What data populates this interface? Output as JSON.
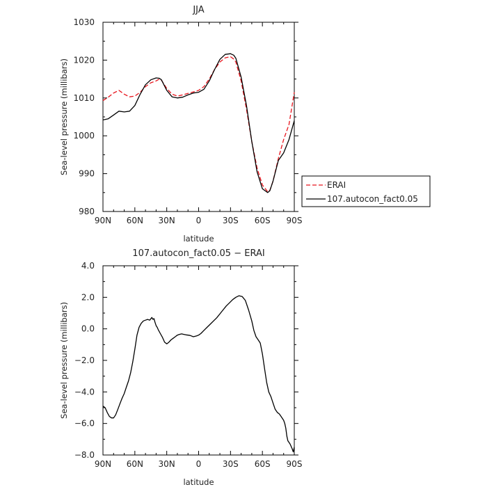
{
  "chart_data": [
    {
      "type": "line",
      "title": "JJA",
      "xlabel": "latitude",
      "ylabel": "Sea-level pressure (millibars)",
      "xlim": [
        90,
        -90
      ],
      "ylim": [
        980,
        1030
      ],
      "x_ticks": [
        90,
        60,
        30,
        0,
        -30,
        -60,
        -90
      ],
      "x_tick_labels": [
        "90N",
        "60N",
        "30N",
        "0",
        "30S",
        "60S",
        "90S"
      ],
      "y_ticks": [
        980,
        990,
        1000,
        1010,
        1020,
        1030
      ],
      "y_tick_labels": [
        "980",
        "990",
        "1000",
        "1010",
        "1020",
        "1030"
      ],
      "legend_position": "right",
      "series": [
        {
          "name": "ERAI",
          "color": "#e8141c",
          "dash": "dashed",
          "x": [
            90,
            85,
            80,
            75,
            70,
            65,
            60,
            55,
            50,
            45,
            40,
            37,
            35,
            30,
            25,
            20,
            15,
            10,
            5,
            0,
            -5,
            -10,
            -15,
            -20,
            -25,
            -30,
            -33,
            -35,
            -40,
            -45,
            -50,
            -55,
            -60,
            -65,
            -67,
            -70,
            -75,
            -80,
            -85,
            -90
          ],
          "y": [
            1009.3,
            1010.2,
            1011.3,
            1012.0,
            1011.0,
            1010.3,
            1010.5,
            1011.5,
            1013.0,
            1014.0,
            1014.5,
            1015.0,
            1014.7,
            1012.5,
            1011.0,
            1010.5,
            1010.8,
            1011.2,
            1011.6,
            1012.0,
            1013.0,
            1015.0,
            1017.5,
            1019.5,
            1020.6,
            1020.9,
            1020.3,
            1019.5,
            1014.5,
            1007.0,
            998.5,
            991.5,
            987.0,
            985.2,
            985.6,
            988.0,
            994.0,
            999.0,
            1003.0,
            1011.5
          ]
        },
        {
          "name": "107.autocon_fact0.05",
          "color": "#000000",
          "dash": "solid",
          "x": [
            90,
            85,
            80,
            75,
            70,
            65,
            60,
            55,
            50,
            45,
            40,
            37,
            35,
            30,
            25,
            20,
            15,
            10,
            5,
            0,
            -5,
            -10,
            -15,
            -20,
            -25,
            -30,
            -33,
            -35,
            -40,
            -45,
            -50,
            -55,
            -60,
            -65,
            -67,
            -70,
            -75,
            -80,
            -85,
            -90
          ],
          "y": [
            1004.2,
            1004.5,
            1005.5,
            1006.5,
            1006.3,
            1006.5,
            1008.0,
            1011.0,
            1013.5,
            1014.8,
            1015.3,
            1015.2,
            1014.8,
            1012.0,
            1010.3,
            1010.0,
            1010.2,
            1010.8,
            1011.3,
            1011.5,
            1012.3,
            1014.5,
            1017.5,
            1020.2,
            1021.5,
            1021.7,
            1021.3,
            1020.5,
            1015.5,
            1008.0,
            998.5,
            990.5,
            986.0,
            985.0,
            985.5,
            988.0,
            993.5,
            995.5,
            999.0,
            1004.0
          ]
        }
      ]
    },
    {
      "type": "line",
      "title": "107.autocon_fact0.05 − ERAI",
      "xlabel": "latitude",
      "ylabel": "Sea-level pressure (millibars)",
      "xlim": [
        90,
        -90
      ],
      "ylim": [
        -8.0,
        4.0
      ],
      "x_ticks": [
        90,
        60,
        30,
        0,
        -30,
        -60,
        -90
      ],
      "x_tick_labels": [
        "90N",
        "60N",
        "30N",
        "0",
        "30S",
        "60S",
        "90S"
      ],
      "y_ticks": [
        -8,
        -6,
        -4,
        -2,
        0,
        2,
        4
      ],
      "y_tick_labels": [
        "−8.0",
        "−6.0",
        "−4.0",
        "−2.0",
        "0.0",
        "2.0",
        "4.0"
      ],
      "series": [
        {
          "color": "#000000",
          "dash": "solid",
          "x": [
            90,
            88,
            86,
            84,
            82,
            80,
            78,
            76,
            74,
            72,
            70,
            68,
            66,
            64,
            62,
            60,
            58,
            56,
            54,
            52,
            50,
            48,
            46,
            44,
            43,
            42,
            41,
            40,
            39,
            38,
            36,
            34,
            32,
            30,
            29,
            28,
            26,
            24,
            22,
            20,
            18,
            16,
            14,
            12,
            10,
            8,
            5,
            2,
            0,
            -2,
            -5,
            -8,
            -11,
            -14,
            -17,
            -20,
            -23,
            -26,
            -29,
            -32,
            -35,
            -38,
            -41,
            -44,
            -47,
            -50,
            -52,
            -54,
            -56,
            -58,
            -60,
            -62,
            -64,
            -66,
            -68,
            -70,
            -72,
            -74,
            -76,
            -78,
            -80,
            -81,
            -82,
            -83,
            -84,
            -85,
            -86,
            -87,
            -88,
            -89,
            -90
          ],
          "y": [
            -4.9,
            -5.0,
            -5.3,
            -5.55,
            -5.65,
            -5.65,
            -5.45,
            -5.1,
            -4.75,
            -4.4,
            -4.1,
            -3.7,
            -3.3,
            -2.8,
            -2.1,
            -1.3,
            -0.4,
            0.1,
            0.35,
            0.5,
            0.55,
            0.6,
            0.55,
            0.72,
            0.6,
            0.65,
            0.4,
            0.2,
            0.1,
            -0.05,
            -0.3,
            -0.55,
            -0.85,
            -0.95,
            -0.9,
            -0.85,
            -0.7,
            -0.6,
            -0.5,
            -0.4,
            -0.35,
            -0.32,
            -0.35,
            -0.38,
            -0.4,
            -0.42,
            -0.5,
            -0.45,
            -0.4,
            -0.3,
            -0.1,
            0.1,
            0.3,
            0.5,
            0.7,
            0.95,
            1.2,
            1.45,
            1.65,
            1.85,
            2.0,
            2.1,
            2.05,
            1.8,
            1.2,
            0.5,
            -0.1,
            -0.5,
            -0.7,
            -0.9,
            -1.6,
            -2.5,
            -3.4,
            -4.0,
            -4.3,
            -4.7,
            -5.1,
            -5.3,
            -5.4,
            -5.6,
            -5.8,
            -6.0,
            -6.3,
            -6.8,
            -7.1,
            -7.2,
            -7.3,
            -7.45,
            -7.6,
            -7.8,
            -7.5
          ]
        }
      ]
    }
  ],
  "legend": {
    "items": [
      {
        "label": "ERAI",
        "color": "#e8141c",
        "dash": "dashed"
      },
      {
        "label": "107.autocon_fact0.05",
        "color": "#000000",
        "dash": "solid"
      }
    ]
  }
}
